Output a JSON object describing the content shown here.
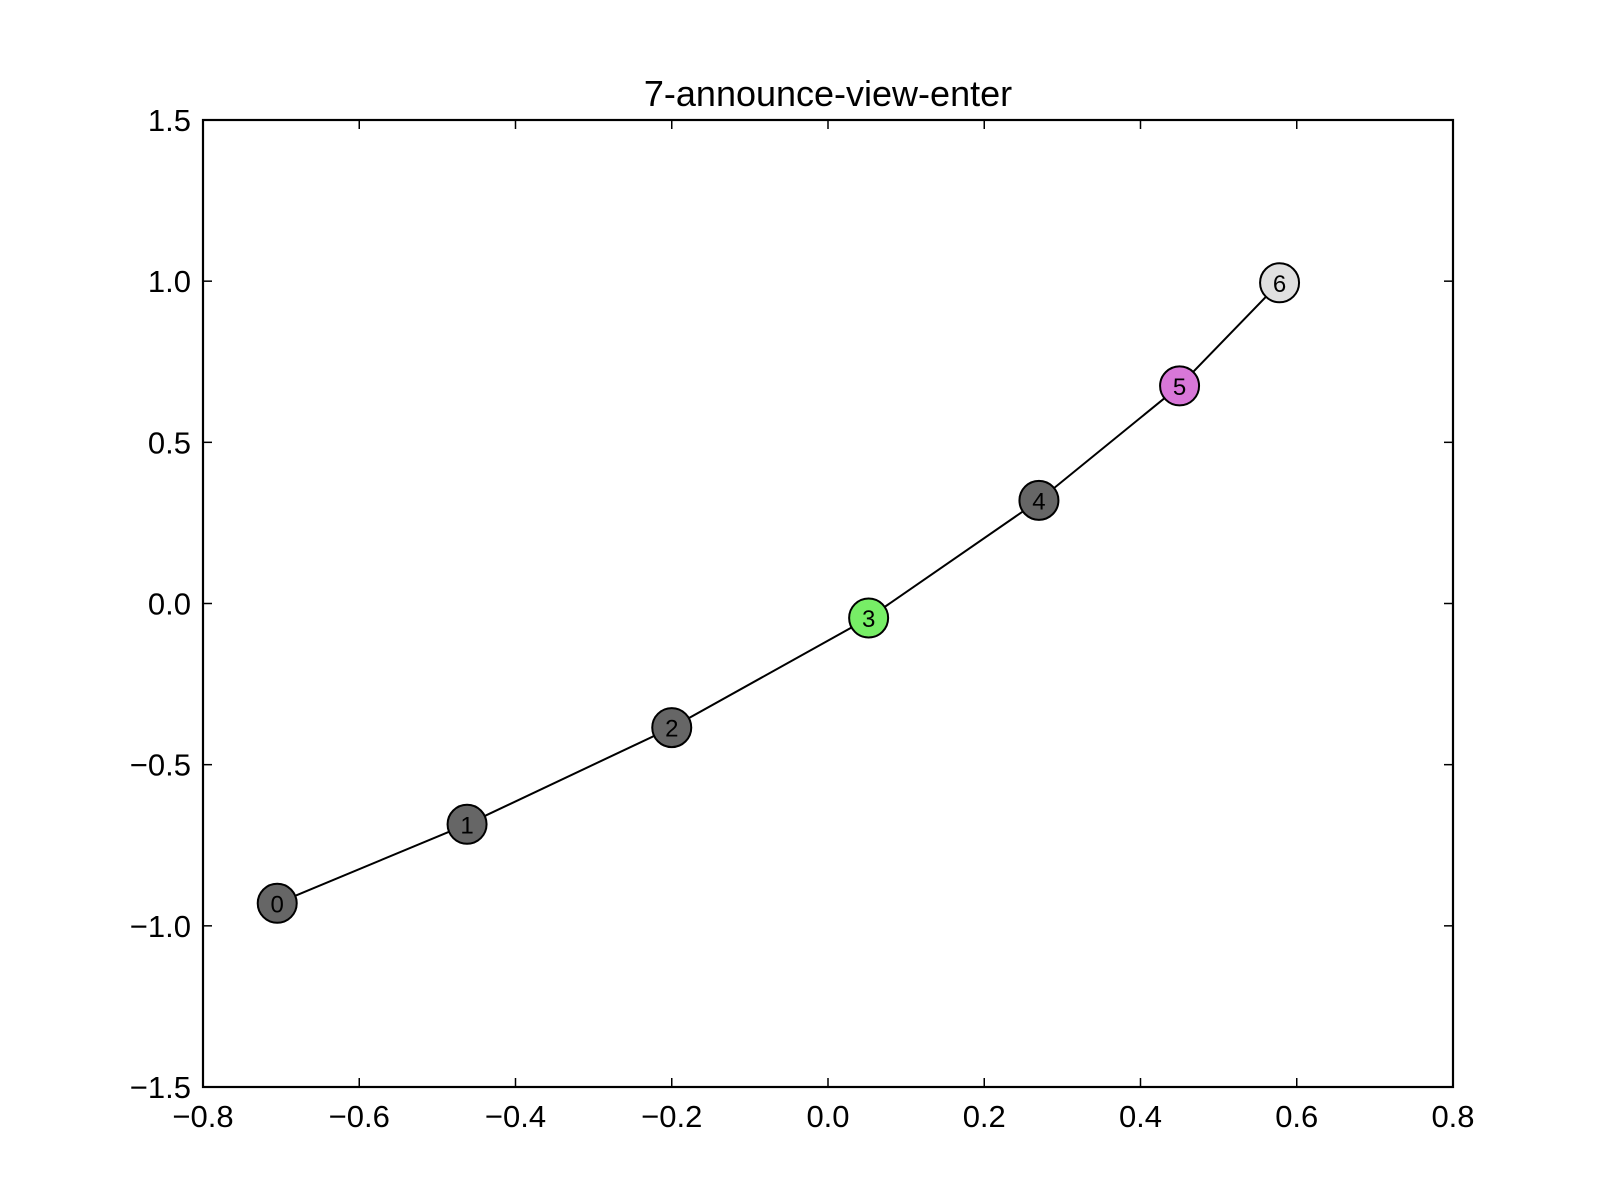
{
  "chart_data": {
    "type": "line",
    "title": "7-announce-view-enter",
    "xlabel": "",
    "ylabel": "",
    "xlim": [
      -0.8,
      0.8
    ],
    "ylim": [
      -1.5,
      1.5
    ],
    "xticks": [
      -0.8,
      -0.6,
      -0.4,
      -0.2,
      0.0,
      0.2,
      0.4,
      0.6,
      0.8
    ],
    "yticks": [
      -1.5,
      -1.0,
      -0.5,
      0.0,
      0.5,
      1.0,
      1.5
    ],
    "xtick_labels": [
      "−0.8",
      "−0.6",
      "−0.4",
      "−0.2",
      "0.0",
      "0.2",
      "0.4",
      "0.6",
      "0.8"
    ],
    "ytick_labels": [
      "−1.5",
      "−1.0",
      "−0.5",
      "0.0",
      "0.5",
      "1.0",
      "1.5"
    ],
    "grid": false,
    "line_color": "#000000",
    "points": [
      {
        "label": "0",
        "x": -0.705,
        "y": -0.93,
        "color": "#666666"
      },
      {
        "label": "1",
        "x": -0.462,
        "y": -0.685,
        "color": "#666666"
      },
      {
        "label": "2",
        "x": -0.2,
        "y": -0.385,
        "color": "#666666"
      },
      {
        "label": "3",
        "x": 0.052,
        "y": -0.045,
        "color": "#77ee66"
      },
      {
        "label": "4",
        "x": 0.27,
        "y": 0.32,
        "color": "#666666"
      },
      {
        "label": "5",
        "x": 0.45,
        "y": 0.675,
        "color": "#d877d8"
      },
      {
        "label": "6",
        "x": 0.578,
        "y": 0.995,
        "color": "#e0e0e0"
      }
    ]
  }
}
